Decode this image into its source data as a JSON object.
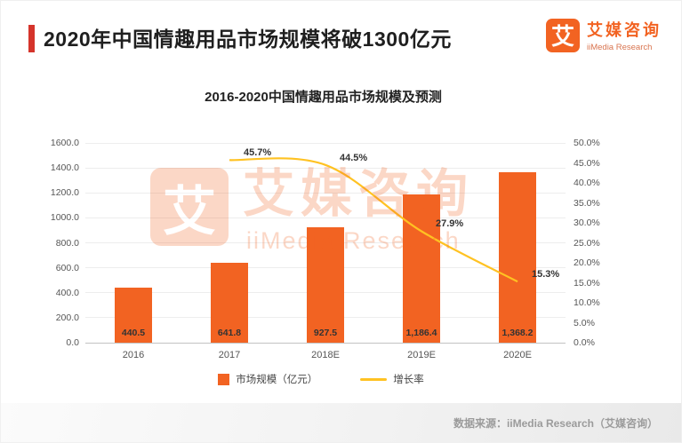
{
  "page": {
    "title": "2020年中国情趣用品市场规模将破1300亿元",
    "source": "数据来源：iiMedia Research（艾媒咨询）"
  },
  "logo": {
    "glyph": "艾",
    "name_cn": "艾媒咨询",
    "name_en": "iiMedia Research"
  },
  "watermark": {
    "glyph": "艾",
    "text_cn": "艾媒咨询",
    "text_en": "iiMedia Research"
  },
  "colors": {
    "bar_orange": "#f26322",
    "line_yellow": "#ffc222",
    "accent_red": "#d5342b"
  },
  "chart_data": {
    "type": "bar+line",
    "title": "2016-2020中国情趣用品市场规模及预测",
    "categories": [
      "2016",
      "2017",
      "2018E",
      "2019E",
      "2020E"
    ],
    "series": [
      {
        "name": "市场规模（亿元）",
        "type": "bar",
        "axis": "left",
        "color": "#f26322",
        "values": [
          440.5,
          641.8,
          927.5,
          1186.4,
          1368.2
        ],
        "labels": [
          "440.5",
          "641.8",
          "927.5",
          "1,186.4",
          "1,368.2"
        ]
      },
      {
        "name": "增长率",
        "type": "line",
        "axis": "right",
        "color": "#ffc222",
        "values": [
          null,
          45.7,
          44.5,
          27.9,
          15.3
        ],
        "labels": [
          "",
          "45.7%",
          "44.5%",
          "27.9%",
          "15.3%"
        ]
      }
    ],
    "left_axis": {
      "min": 0,
      "max": 1600,
      "step": 200,
      "ticks": [
        "0.0",
        "200.0",
        "400.0",
        "600.0",
        "800.0",
        "1000.0",
        "1200.0",
        "1400.0",
        "1600.0"
      ]
    },
    "right_axis": {
      "min": 0,
      "max": 50,
      "step": 5,
      "ticks": [
        "0.0%",
        "5.0%",
        "10.0%",
        "15.0%",
        "20.0%",
        "25.0%",
        "30.0%",
        "35.0%",
        "40.0%",
        "45.0%",
        "50.0%"
      ]
    },
    "grid": true,
    "legend_position": "bottom"
  }
}
